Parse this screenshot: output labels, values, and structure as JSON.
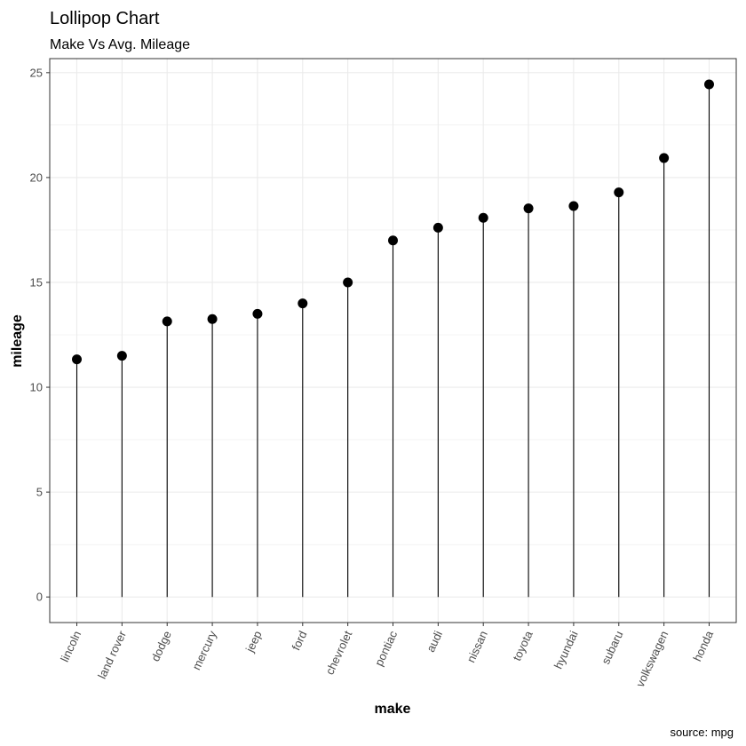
{
  "chart_data": {
    "type": "lollipop",
    "title": "Lollipop Chart",
    "subtitle": "Make Vs Avg. Mileage",
    "xlabel": "make",
    "ylabel": "mileage",
    "caption": "source: mpg",
    "categories": [
      "lincoln",
      "land rover",
      "dodge",
      "mercury",
      "jeep",
      "ford",
      "chevrolet",
      "pontiac",
      "audi",
      "nissan",
      "toyota",
      "hyundai",
      "subaru",
      "volkswagen",
      "honda"
    ],
    "values": [
      11.33,
      11.5,
      13.14,
      13.25,
      13.5,
      14.0,
      15.0,
      17.0,
      17.61,
      18.08,
      18.53,
      18.64,
      19.29,
      20.93,
      24.44
    ],
    "yticks": [
      0,
      5,
      10,
      15,
      20,
      25
    ],
    "ylim": [
      -1.22,
      25.67
    ],
    "grid": true,
    "legend": "none",
    "colors": {
      "stick": "#000000",
      "dot": "#000000",
      "grid": "#ebebeb",
      "border": "#333333",
      "tick_text": "#4d4d4d"
    }
  }
}
